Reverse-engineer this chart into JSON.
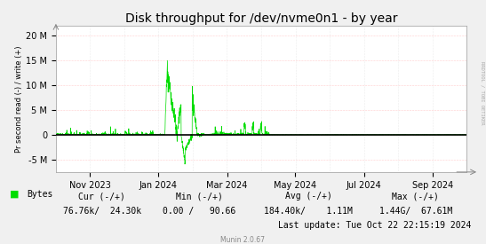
{
  "title": "Disk throughput for /dev/nvme0n1 - by year",
  "ylabel": "Pr second read (-) / write (+)",
  "background_color": "#f0f0f0",
  "plot_bg_color": "#ffffff",
  "grid_color_h": "#ff9999",
  "grid_color_v": "#cccccc",
  "line_color": "#00dd00",
  "zero_line_color": "#000000",
  "border_color": "#aaaaaa",
  "yticks": [
    -5000000,
    0,
    5000000,
    10000000,
    15000000,
    20000000
  ],
  "ytick_labels": [
    "-5 M",
    "0",
    "5 M",
    "10 M",
    "15 M",
    "20 M"
  ],
  "ylim": [
    -7500000,
    22000000
  ],
  "xtick_labels": [
    "Nov 2023",
    "Jan 2024",
    "Mar 2024",
    "May 2024",
    "Jul 2024",
    "Sep 2024"
  ],
  "xtick_positions": [
    0.083,
    0.25,
    0.417,
    0.583,
    0.75,
    0.917
  ],
  "legend_label": "Bytes",
  "stats_row1": "          Cur (-/+)               Min (-/+)          Avg (-/+)               Max (-/+)",
  "stats_row2": "76.76k/  24.30k         0.00 /   90.66    184.40k/    1.11M       1.44G/  67.61M",
  "last_update": "Last update: Tue Oct 22 22:15:19 2024",
  "munin_version": "Munin 2.0.67",
  "rrdtool_label": "RRDTOOL / TOBI OETIKER",
  "title_fontsize": 10,
  "axis_fontsize": 7,
  "legend_fontsize": 7,
  "stats_fontsize": 7
}
